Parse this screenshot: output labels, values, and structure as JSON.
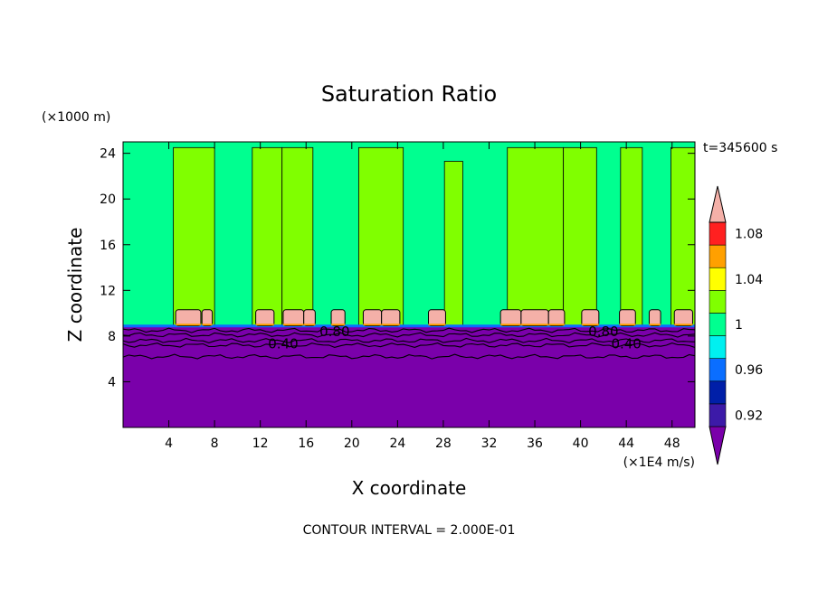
{
  "chart_data": {
    "type": "heatmap",
    "title": "Saturation Ratio",
    "xlabel": "X coordinate",
    "ylabel": "Z coordinate",
    "x_unit": "(×1E4 m/s)",
    "y_unit": "(×1000 m)",
    "time_label": "t=345600 s",
    "footer": "CONTOUR INTERVAL = 2.000E-01",
    "xlim": [
      0,
      50
    ],
    "ylim": [
      0,
      25
    ],
    "x_ticks": [
      "4",
      "8",
      "12",
      "16",
      "20",
      "24",
      "28",
      "32",
      "36",
      "40",
      "44",
      "48"
    ],
    "x_tick_values": [
      4,
      8,
      12,
      16,
      20,
      24,
      28,
      32,
      36,
      40,
      44,
      48
    ],
    "y_ticks": [
      "4",
      "8",
      "12",
      "16",
      "20",
      "24"
    ],
    "y_tick_values": [
      4,
      8,
      12,
      16,
      20,
      24
    ],
    "contour_labels": [
      {
        "text": "0.80",
        "x": 18.5,
        "z": 8.4
      },
      {
        "text": "0.40",
        "x": 14,
        "z": 7.3
      },
      {
        "text": "0.80",
        "x": 42,
        "z": 8.4
      },
      {
        "text": "0.40",
        "x": 44,
        "z": 7.3
      }
    ],
    "colorbar": {
      "tick_labels": [
        "1.08",
        "1.04",
        "1",
        "0.96",
        "0.92"
      ],
      "tick_values": [
        1.08,
        1.04,
        1.0,
        0.96,
        0.92
      ],
      "levels": [
        {
          "max": 0.92,
          "color": "#7a00aa"
        },
        {
          "max": 0.94,
          "color": "#3c1aa8"
        },
        {
          "max": 0.96,
          "color": "#001fa8"
        },
        {
          "max": 0.98,
          "color": "#0a6eff"
        },
        {
          "max": 1.0,
          "color": "#00f0f0"
        },
        {
          "max": 1.02,
          "color": "#00ff90"
        },
        {
          "max": 1.04,
          "color": "#80ff00"
        },
        {
          "max": 1.06,
          "color": "#ffff00"
        },
        {
          "max": 1.08,
          "color": "#ffa000"
        },
        {
          "max": 1.1,
          "color": "#ff2020"
        },
        {
          "max": 9.99,
          "color": "#f4b0a8"
        }
      ]
    },
    "background_color": "#00ff90",
    "lower_layer_color": "#7a00aa",
    "columns": [
      {
        "x0": 4.4,
        "x1": 8.0,
        "z0": 8.8,
        "z1": 24.5
      },
      {
        "x0": 11.3,
        "x1": 13.9,
        "z0": 8.8,
        "z1": 24.5
      },
      {
        "x0": 13.9,
        "x1": 16.6,
        "z0": 8.8,
        "z1": 24.5
      },
      {
        "x0": 20.6,
        "x1": 24.5,
        "z0": 8.8,
        "z1": 24.5
      },
      {
        "x0": 28.1,
        "x1": 29.7,
        "z0": 8.8,
        "z1": 23.3
      },
      {
        "x0": 33.6,
        "x1": 38.5,
        "z0": 8.8,
        "z1": 24.5
      },
      {
        "x0": 38.5,
        "x1": 41.4,
        "z0": 8.8,
        "z1": 24.5
      },
      {
        "x0": 43.5,
        "x1": 45.4,
        "z0": 8.8,
        "z1": 24.5
      },
      {
        "x0": 47.9,
        "x1": 50.0,
        "z0": 8.8,
        "z1": 24.5
      }
    ],
    "caps": [
      {
        "x0": 4.6,
        "x1": 6.8
      },
      {
        "x0": 6.9,
        "x1": 7.8
      },
      {
        "x0": 11.6,
        "x1": 13.2
      },
      {
        "x0": 14.0,
        "x1": 15.8
      },
      {
        "x0": 15.8,
        "x1": 16.8
      },
      {
        "x0": 18.2,
        "x1": 19.4
      },
      {
        "x0": 21.0,
        "x1": 22.6
      },
      {
        "x0": 22.6,
        "x1": 24.2
      },
      {
        "x0": 26.7,
        "x1": 28.2
      },
      {
        "x0": 33.0,
        "x1": 34.8
      },
      {
        "x0": 34.8,
        "x1": 37.2
      },
      {
        "x0": 37.2,
        "x1": 38.6
      },
      {
        "x0": 40.1,
        "x1": 41.6
      },
      {
        "x0": 43.4,
        "x1": 44.8
      },
      {
        "x0": 46.0,
        "x1": 47.0
      },
      {
        "x0": 48.2,
        "x1": 49.8
      }
    ]
  }
}
